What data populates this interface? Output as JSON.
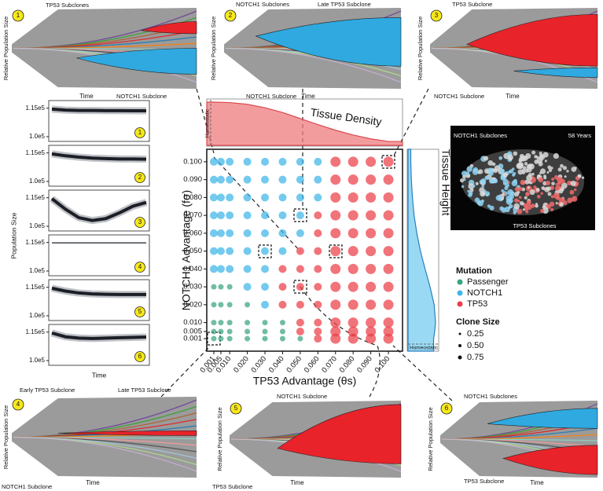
{
  "chart_data": [
    {
      "type": "scatter",
      "xlabel": "TP53 Advantage (θs)",
      "ylabel": "NOTCH1 Advantage (fσ)",
      "xlim": [
        -0.003,
        0.108
      ],
      "ylim": [
        -0.006,
        0.107
      ],
      "xticks": [
        0.001,
        0.005,
        {
          "value": 0.01,
          "label": "0.010"
        },
        {
          "value": 0.02,
          "label": "0.020"
        },
        {
          "value": 0.03,
          "label": "0.030"
        },
        {
          "value": 0.04,
          "label": "0.040"
        },
        {
          "value": 0.05,
          "label": "0.050"
        },
        {
          "value": 0.06,
          "label": "0.060"
        },
        {
          "value": 0.07,
          "label": "0.070"
        },
        {
          "value": 0.08,
          "label": "0.080"
        },
        {
          "value": 0.09,
          "label": "0.090"
        },
        {
          "value": 0.1,
          "label": "0.100"
        }
      ],
      "yticks": [
        0.001,
        0.005,
        {
          "value": 0.01,
          "label": "0.010"
        },
        {
          "value": 0.02,
          "label": "0.020"
        },
        {
          "value": 0.03,
          "label": "0.030"
        },
        {
          "value": 0.04,
          "label": "0.040"
        },
        {
          "value": 0.05,
          "label": "0.050"
        },
        {
          "value": 0.06,
          "label": "0.060"
        },
        {
          "value": 0.07,
          "label": "0.070"
        },
        {
          "value": 0.08,
          "label": "0.080"
        },
        {
          "value": 0.09,
          "label": "0.090"
        },
        {
          "value": 0.1,
          "label": "0.100"
        }
      ],
      "legend_title": "Mutation",
      "size_title": "Clone Size",
      "size_legend": [
        0.25,
        {
          "value": 0.5,
          "label": "0.50"
        },
        0.75
      ],
      "series": [
        {
          "name": "Passenger",
          "color": "#3aa37f",
          "x": [
            0.001,
            0.005,
            0.01,
            0.001,
            0.005,
            0.01,
            0.02,
            0.001,
            0.005,
            0.01,
            0.02,
            0.03,
            0.04,
            0.001,
            0.005,
            0.01,
            0.02,
            0.03,
            0.04,
            0.001,
            0.005,
            0.01,
            0.02,
            0.03,
            0.04,
            0.05
          ],
          "y": [
            0.03,
            0.03,
            0.03,
            0.02,
            0.02,
            0.02,
            0.02,
            0.01,
            0.01,
            0.01,
            0.01,
            0.01,
            0.01,
            0.005,
            0.005,
            0.005,
            0.005,
            0.005,
            0.005,
            0.001,
            0.001,
            0.001,
            0.001,
            0.001,
            0.001,
            0.001
          ],
          "sizes": [
            0.25,
            0.25,
            0.25,
            0.25,
            0.25,
            0.25,
            0.25,
            0.25,
            0.25,
            0.25,
            0.25,
            0.25,
            0.25,
            0.25,
            0.25,
            0.25,
            0.25,
            0.25,
            0.25,
            0.25,
            0.25,
            0.25,
            0.25,
            0.25,
            0.25,
            0.25
          ]
        },
        {
          "name": "NOTCH1",
          "color": "#3fb6e8",
          "x": [
            0.001,
            0.005,
            0.01,
            0.02,
            0.03,
            0.04,
            0.05,
            0.06,
            0.001,
            0.005,
            0.01,
            0.02,
            0.03,
            0.04,
            0.05,
            0.06,
            0.001,
            0.005,
            0.01,
            0.02,
            0.03,
            0.04,
            0.05,
            0.06,
            0.001,
            0.005,
            0.01,
            0.02,
            0.03,
            0.04,
            0.05,
            0.001,
            0.005,
            0.01,
            0.02,
            0.03,
            0.04,
            0.05,
            0.001,
            0.005,
            0.01,
            0.02,
            0.03,
            0.04,
            0.001,
            0.005,
            0.01,
            0.02,
            0.03,
            0.02,
            0.03,
            0.03
          ],
          "y": [
            0.1,
            0.1,
            0.1,
            0.1,
            0.1,
            0.1,
            0.1,
            0.1,
            0.09,
            0.09,
            0.09,
            0.09,
            0.09,
            0.09,
            0.09,
            0.09,
            0.08,
            0.08,
            0.08,
            0.08,
            0.08,
            0.08,
            0.08,
            0.08,
            0.07,
            0.07,
            0.07,
            0.07,
            0.07,
            0.07,
            0.07,
            0.06,
            0.06,
            0.06,
            0.06,
            0.06,
            0.06,
            0.06,
            0.05,
            0.05,
            0.05,
            0.05,
            0.05,
            0.05,
            0.04,
            0.04,
            0.04,
            0.04,
            0.04,
            0.03,
            0.03,
            0.02
          ],
          "sizes": [
            0.5,
            0.5,
            0.5,
            0.5,
            0.5,
            0.5,
            0.5,
            0.5,
            0.5,
            0.5,
            0.5,
            0.5,
            0.5,
            0.5,
            0.5,
            0.5,
            0.5,
            0.5,
            0.5,
            0.5,
            0.5,
            0.5,
            0.5,
            0.5,
            0.5,
            0.5,
            0.5,
            0.5,
            0.5,
            0.5,
            0.5,
            0.5,
            0.5,
            0.5,
            0.5,
            0.5,
            0.5,
            0.5,
            0.5,
            0.5,
            0.5,
            0.5,
            0.5,
            0.5,
            0.5,
            0.5,
            0.5,
            0.5,
            0.5,
            0.5,
            0.5,
            0.5
          ]
        },
        {
          "name": "TP53",
          "color": "#ec3f47",
          "x": [
            0.07,
            0.08,
            0.09,
            0.1,
            0.07,
            0.08,
            0.09,
            0.1,
            0.07,
            0.08,
            0.09,
            0.1,
            0.06,
            0.07,
            0.08,
            0.09,
            0.1,
            0.06,
            0.07,
            0.08,
            0.09,
            0.1,
            0.05,
            0.06,
            0.07,
            0.08,
            0.09,
            0.1,
            0.04,
            0.05,
            0.06,
            0.07,
            0.08,
            0.09,
            0.1,
            0.04,
            0.05,
            0.06,
            0.07,
            0.08,
            0.09,
            0.1,
            0.04,
            0.05,
            0.06,
            0.07,
            0.08,
            0.09,
            0.1,
            0.05,
            0.06,
            0.07,
            0.08,
            0.09,
            0.1,
            0.05,
            0.06,
            0.07,
            0.08,
            0.09,
            0.1,
            0.06,
            0.07,
            0.08,
            0.09,
            0.1
          ],
          "y": [
            0.1,
            0.1,
            0.1,
            0.1,
            0.09,
            0.09,
            0.09,
            0.09,
            0.08,
            0.08,
            0.08,
            0.08,
            0.07,
            0.07,
            0.07,
            0.07,
            0.07,
            0.06,
            0.06,
            0.06,
            0.06,
            0.06,
            0.05,
            0.05,
            0.05,
            0.05,
            0.05,
            0.05,
            0.04,
            0.04,
            0.04,
            0.04,
            0.04,
            0.04,
            0.04,
            0.03,
            0.03,
            0.03,
            0.03,
            0.03,
            0.03,
            0.03,
            0.02,
            0.02,
            0.02,
            0.02,
            0.02,
            0.02,
            0.02,
            0.01,
            0.01,
            0.01,
            0.01,
            0.01,
            0.01,
            0.005,
            0.005,
            0.005,
            0.005,
            0.005,
            0.005,
            0.001,
            0.001,
            0.001,
            0.001,
            0.001
          ],
          "sizes": [
            0.75,
            0.75,
            0.75,
            0.75,
            0.75,
            0.75,
            0.75,
            0.75,
            0.75,
            0.75,
            0.75,
            0.75,
            0.5,
            0.75,
            0.75,
            0.75,
            0.75,
            0.5,
            0.75,
            0.75,
            0.75,
            0.75,
            0.5,
            0.5,
            0.75,
            0.75,
            0.75,
            0.75,
            0.5,
            0.5,
            0.5,
            0.75,
            0.75,
            0.75,
            0.75,
            0.5,
            0.5,
            0.5,
            0.75,
            0.75,
            0.75,
            0.75,
            0.5,
            0.5,
            0.5,
            0.75,
            0.75,
            0.75,
            0.75,
            0.5,
            0.5,
            0.75,
            0.75,
            0.75,
            0.75,
            0.5,
            0.5,
            0.75,
            0.75,
            0.75,
            0.75,
            0.5,
            0.75,
            0.75,
            0.75,
            0.75
          ]
        }
      ]
    },
    {
      "type": "area",
      "title": "Tissue Density",
      "annotation": "Homeostatic",
      "color": "#ef7b7e",
      "x": [
        0.001,
        0.01,
        0.02,
        0.03,
        0.04,
        0.05,
        0.06,
        0.07,
        0.08,
        0.09,
        0.1
      ],
      "values": [
        1,
        0.99,
        0.95,
        0.87,
        0.76,
        0.62,
        0.48,
        0.35,
        0.24,
        0.15,
        0.09
      ]
    },
    {
      "type": "area",
      "title": "Tissue Height",
      "annotation": "Homeostatic",
      "color": "#7fd0f0",
      "y": [
        0.1,
        0.09,
        0.08,
        0.07,
        0.06,
        0.05,
        0.04,
        0.03,
        0.02,
        0.01,
        0.005,
        0.001
      ],
      "values": [
        0.1,
        0.12,
        0.16,
        0.22,
        0.32,
        0.45,
        0.62,
        0.8,
        0.95,
        1,
        0.97,
        0.93
      ]
    },
    {
      "type": "line",
      "ylabel": "Population Size",
      "xlabel": "Time",
      "ylim": [
        97500,
        119000
      ],
      "yticks": [
        {
          "value": 100000,
          "label": "1.0e5"
        },
        {
          "value": 115000,
          "label": "1.15e5"
        }
      ],
      "panels": [
        {
          "label": "1",
          "values": [
            114500,
            114000,
            113800,
            113800,
            113700,
            113700,
            113600,
            113600
          ]
        },
        {
          "label": "2",
          "values": [
            114500,
            113500,
            112800,
            112300,
            112000,
            111800,
            111800,
            111700
          ]
        },
        {
          "label": "3",
          "values": [
            114500,
            109000,
            104500,
            103000,
            104000,
            107000,
            110500,
            112500
          ]
        },
        {
          "label": "4",
          "values": [
            114800,
            114800,
            114800,
            114800,
            114800,
            114800,
            114800,
            114800
          ]
        },
        {
          "label": "5",
          "values": [
            114500,
            113000,
            112000,
            111500,
            111300,
            111200,
            111200,
            111200
          ]
        },
        {
          "label": "6",
          "values": [
            114500,
            112500,
            111800,
            111600,
            111800,
            112000,
            112200,
            112400
          ]
        }
      ]
    },
    {
      "type": "muller",
      "ylabel": "Relative Population Size",
      "xlabel": "Time",
      "panels": [
        {
          "label": "1",
          "annotations": [
            "TP53 Subclones",
            "NOTCH1 Subclone"
          ]
        },
        {
          "label": "2",
          "annotations": [
            "NOTCH1 Subclones",
            "Late TP53 Subclone",
            "NOTCH1 Subclone"
          ]
        },
        {
          "label": "3",
          "annotations": [
            "TP53 Subclone",
            "NOTCH1 Subclone"
          ]
        },
        {
          "label": "4",
          "annotations": [
            "Early TP53 Subclone",
            "Late TP53 Subclone",
            "NOTCH1 Subclone"
          ]
        },
        {
          "label": "5",
          "annotations": [
            "NOTCH1 Subclone",
            "TP53 Subclone"
          ]
        },
        {
          "label": "6",
          "annotations": [
            "NOTCH1 Subclones",
            "TP53 Subclone"
          ]
        }
      ]
    },
    {
      "type": "image",
      "annotations": [
        "NOTCH1 Subclones",
        "58 Years",
        "TP53 Subclones"
      ]
    }
  ]
}
